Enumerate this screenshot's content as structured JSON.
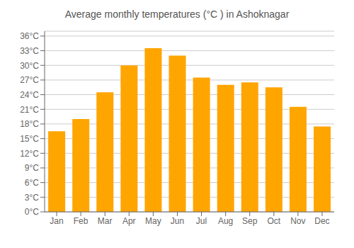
{
  "chart_data": {
    "type": "bar",
    "title": "Average monthly temperatures (°C ) in Ashoknagar",
    "categories": [
      "Jan",
      "Feb",
      "Mar",
      "Apr",
      "May",
      "Jun",
      "Jul",
      "Aug",
      "Sep",
      "Oct",
      "Nov",
      "Dec"
    ],
    "values": [
      16.5,
      19.0,
      24.5,
      30.0,
      33.5,
      32.0,
      27.5,
      26.0,
      26.5,
      25.5,
      21.5,
      17.5
    ],
    "color": "#FFA500",
    "ylim": [
      0,
      37
    ],
    "yticks": [
      {
        "value": 0,
        "label": "0°C"
      },
      {
        "value": 3,
        "label": "3°C"
      },
      {
        "value": 6,
        "label": "6°C"
      },
      {
        "value": 9,
        "label": "9°C"
      },
      {
        "value": 12,
        "label": "12°C"
      },
      {
        "value": 15,
        "label": "15°C"
      },
      {
        "value": 18,
        "label": "18°C"
      },
      {
        "value": 21,
        "label": "21°C"
      },
      {
        "value": 24,
        "label": "24°C"
      },
      {
        "value": 27,
        "label": "27°C"
      },
      {
        "value": 30,
        "label": "30°C"
      },
      {
        "value": 33,
        "label": "33°C"
      },
      {
        "value": 36,
        "label": "36°C"
      }
    ],
    "grid": true
  }
}
